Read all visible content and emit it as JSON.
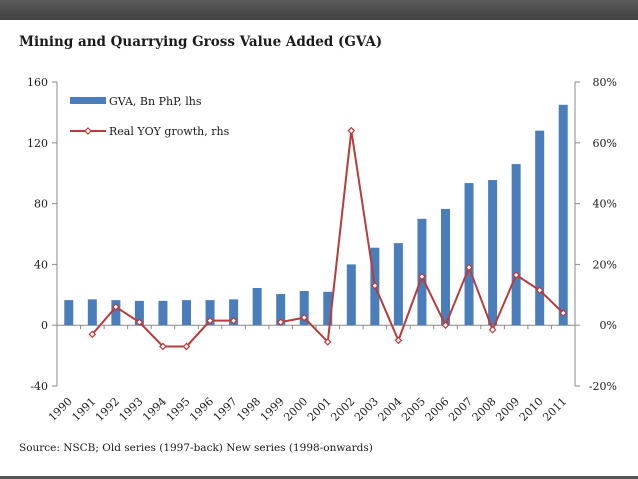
{
  "page": {
    "title": "Mining and Quarrying Gross Value Added (GVA)",
    "source": "Source: NSCB; Old series (1997-back) New series (1998-onwards)"
  },
  "colors": {
    "bar": "#4a7ebb",
    "line": "#b83c3c",
    "marker_fill": "#ffffff",
    "axis": "#8a8a8a",
    "text": "#1a1a1a",
    "top_band": "#4d4d4d"
  },
  "chart_data": {
    "type": "bar",
    "title": "Mining and Quarrying Gross Value Added (GVA)",
    "categories": [
      "1990",
      "1991",
      "1992",
      "1993",
      "1994",
      "1995",
      "1996",
      "1997",
      "1998",
      "1999",
      "2000",
      "2001",
      "2002",
      "2003",
      "2004",
      "2005",
      "2006",
      "2007",
      "2008",
      "2009",
      "2010",
      "2011"
    ],
    "series": [
      {
        "name": "GVA, Bn PhP, lhs",
        "type": "bar",
        "axis": "left",
        "values": [
          16.5,
          17,
          16.5,
          16,
          16,
          16.5,
          16.5,
          17,
          24.5,
          20.5,
          22.5,
          22,
          40,
          51,
          54,
          70,
          76.5,
          93.5,
          95.5,
          106,
          128,
          145
        ]
      },
      {
        "name": "Real YOY growth, rhs",
        "type": "line",
        "axis": "right",
        "values": [
          null,
          -3,
          6,
          1,
          -7,
          -7,
          1.5,
          1.5,
          null,
          1,
          2.5,
          -5.5,
          64,
          13,
          -5,
          16,
          0,
          19,
          -1.5,
          16.5,
          11.5,
          4
        ]
      }
    ],
    "y_left": {
      "min": -40,
      "max": 160,
      "ticks": [
        -40,
        0,
        40,
        80,
        120,
        160
      ]
    },
    "y_right": {
      "min": -20,
      "max": 80,
      "ticks": [
        -20,
        0,
        20,
        40,
        60,
        80
      ],
      "tick_labels": [
        "-20%",
        "0%",
        "20%",
        "40%",
        "60%",
        "80%"
      ]
    },
    "legend": {
      "placement": "top-left",
      "entries": [
        "GVA, Bn PhP, lhs",
        "Real YOY growth, rhs"
      ]
    },
    "grid": false
  }
}
